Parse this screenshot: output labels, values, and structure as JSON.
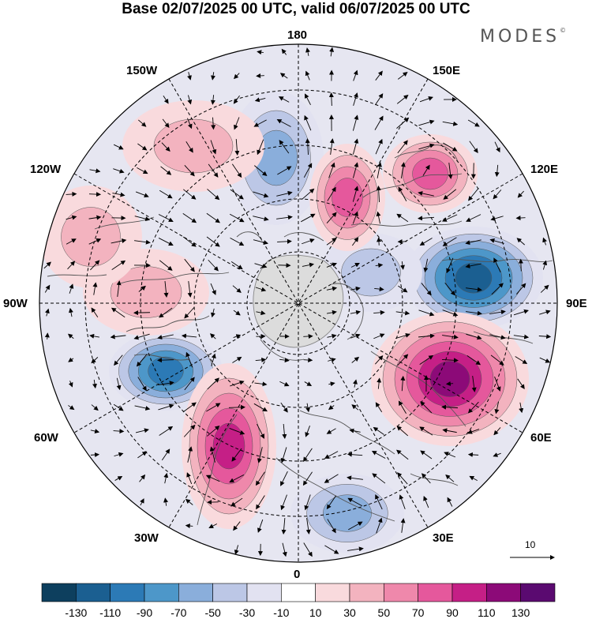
{
  "title": "Base 02/07/2025 00 UTC, valid 06/07/2025 00 UTC",
  "logo": {
    "text": "MODES",
    "mark": "©"
  },
  "longitude_labels": [
    {
      "text": "180"
    },
    {
      "text": "150E"
    },
    {
      "text": "120E"
    },
    {
      "text": "90E"
    },
    {
      "text": "60E"
    },
    {
      "text": "30E"
    },
    {
      "text": "0"
    },
    {
      "text": "30W"
    },
    {
      "text": "60W"
    },
    {
      "text": "90W"
    },
    {
      "text": "120W"
    },
    {
      "text": "150W"
    }
  ],
  "vector_scale": {
    "label": "10"
  },
  "colorbar": {
    "colors": [
      "#0d3f5e",
      "#1b5f91",
      "#2c7ab6",
      "#4d97c9",
      "#8aaedb",
      "#bcc7e6",
      "#e2e2f1",
      "#ffffff",
      "#f9dadd",
      "#f3b3bf",
      "#ef88ab",
      "#e5589c",
      "#c51f86",
      "#8c0a78",
      "#5a0a70"
    ],
    "ticks": [
      "-130",
      "-110",
      "-90",
      "-70",
      "-50",
      "-30",
      "-10",
      "10",
      "30",
      "50",
      "70",
      "90",
      "110",
      "130"
    ]
  },
  "anomaly_centers": [
    {
      "type": "negative",
      "value": -110
    },
    {
      "type": "negative",
      "value": -90
    },
    {
      "type": "negative",
      "value": -50
    },
    {
      "type": "negative",
      "value": -50
    },
    {
      "type": "negative",
      "value": -30
    },
    {
      "type": "positive",
      "value": 110
    },
    {
      "type": "positive",
      "value": 90
    },
    {
      "type": "positive",
      "value": 70
    },
    {
      "type": "positive",
      "value": 70
    },
    {
      "type": "positive",
      "value": 30
    },
    {
      "type": "positive",
      "value": 30
    },
    {
      "type": "positive",
      "value": 30
    }
  ]
}
